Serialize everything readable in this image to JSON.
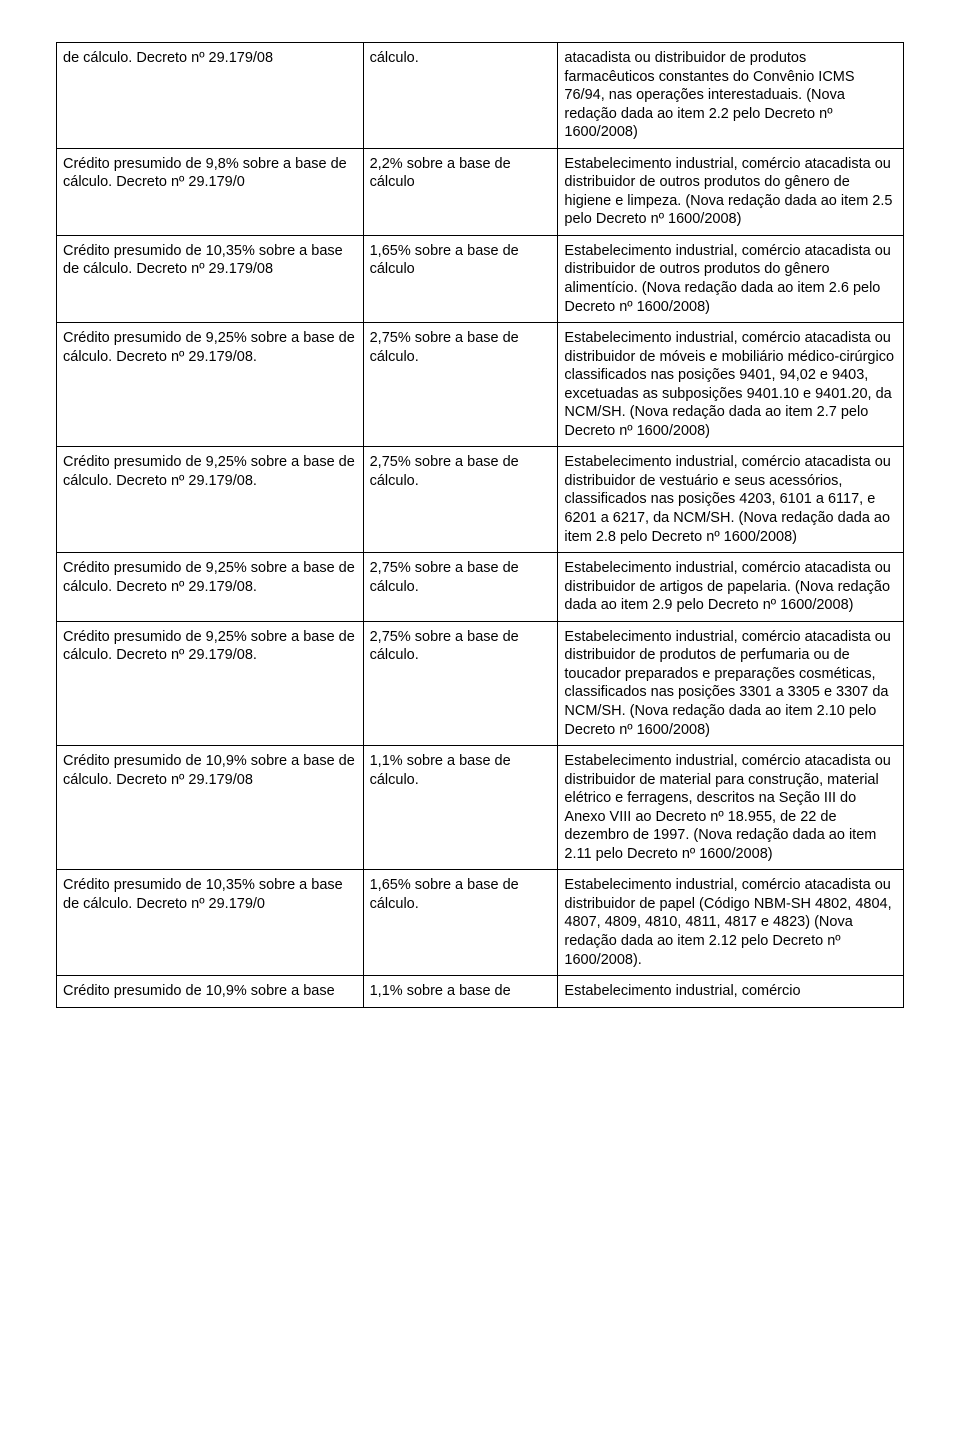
{
  "table": {
    "rows": [
      {
        "col1": "de cálculo. Decreto nº 29.179/08",
        "col2": "cálculo.",
        "col3": "atacadista ou distribuidor de produtos farmacêuticos constantes do Convênio ICMS 76/94, nas operações interestaduais. (Nova redação dada ao item 2.2 pelo Decreto nº 1600/2008)"
      },
      {
        "col1": "Crédito presumido de 9,8% sobre a base de cálculo. Decreto nº 29.179/0",
        "col2": "2,2% sobre a base de cálculo",
        "col3": "Estabelecimento industrial, comércio atacadista ou distribuidor de outros produtos do gênero de higiene e limpeza. (Nova redação dada ao item 2.5 pelo Decreto nº 1600/2008)"
      },
      {
        "col1": "Crédito presumido de 10,35% sobre a base de cálculo. Decreto nº 29.179/08",
        "col2": "1,65% sobre a base de cálculo",
        "col3": "Estabelecimento industrial, comércio atacadista ou distribuidor de outros produtos do gênero alimentício. (Nova redação dada ao item 2.6 pelo Decreto nº 1600/2008)"
      },
      {
        "col1": "Crédito presumido de 9,25% sobre a base de cálculo. Decreto nº 29.179/08.",
        "col2": "2,75% sobre a base de cálculo.",
        "col3": "Estabelecimento industrial, comércio atacadista ou distribuidor de móveis e mobiliário médico-cirúrgico classificados nas posições 9401, 94,02 e 9403, excetuadas as subposições 9401.10 e 9401.20, da NCM/SH. (Nova redação dada ao item 2.7 pelo Decreto nº 1600/2008)"
      },
      {
        "col1": "Crédito presumido de 9,25% sobre a base de cálculo. Decreto nº 29.179/08.",
        "col2": "2,75% sobre a base de cálculo.",
        "col3": "Estabelecimento industrial, comércio atacadista ou distribuidor de vestuário e seus acessórios, classificados nas posições 4203, 6101 a 6117, e 6201 a 6217, da NCM/SH. (Nova redação dada ao item 2.8 pelo Decreto nº 1600/2008)"
      },
      {
        "col1": "Crédito presumido de 9,25% sobre a base de cálculo. Decreto nº 29.179/08.",
        "col2": "2,75% sobre a base de cálculo.",
        "col3": "Estabelecimento industrial, comércio atacadista ou distribuidor de artigos de papelaria. (Nova redação dada ao item 2.9 pelo Decreto nº 1600/2008)"
      },
      {
        "col1": "Crédito presumido de 9,25% sobre a base de cálculo. Decreto nº 29.179/08.",
        "col2": "2,75% sobre a base de cálculo.",
        "col3": "Estabelecimento industrial, comércio atacadista ou distribuidor de produtos de perfumaria ou de toucador preparados e preparações cosméticas, classificados nas posições 3301 a 3305 e 3307 da NCM/SH. (Nova redação dada ao item 2.10 pelo Decreto nº 1600/2008)"
      },
      {
        "col1": "Crédito presumido de 10,9% sobre a base de cálculo. Decreto nº 29.179/08",
        "col2": "1,1% sobre a base de cálculo.",
        "col3": "Estabelecimento industrial, comércio atacadista ou distribuidor de material para construção, material elétrico e ferragens, descritos na Seção III do Anexo VIII ao Decreto nº 18.955, de 22 de dezembro de 1997. (Nova redação dada ao item 2.11 pelo Decreto nº 1600/2008)"
      },
      {
        "col1": "Crédito presumido de 10,35% sobre a base de cálculo. Decreto nº 29.179/0",
        "col2": "1,65% sobre a base de cálculo.",
        "col3": "Estabelecimento industrial, comércio atacadista ou distribuidor de papel (Código NBM-SH 4802, 4804, 4807, 4809, 4810, 4811, 4817 e 4823) (Nova redação dada ao item 2.12 pelo Decreto nº 1600/2008)."
      },
      {
        "col1": "Crédito presumido de 10,9% sobre a base",
        "col2": "1,1% sobre a base de",
        "col3": "Estabelecimento industrial, comércio"
      }
    ]
  }
}
